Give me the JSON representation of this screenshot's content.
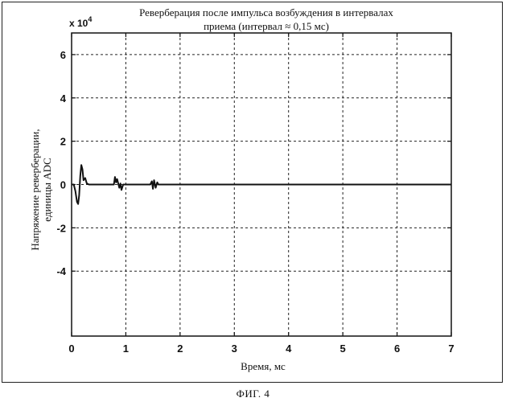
{
  "chart_data": {
    "type": "line",
    "title_lines": [
      "Реверберация после импульса возбуждения в интервалах",
      "приема (интервал ≈ 0,15 мс)"
    ],
    "xlabel": "Время, мс",
    "ylabel_lines": [
      "Напряжение реверберации,",
      "единицы ADC"
    ],
    "y_scale_label": "x 10",
    "y_scale_exponent": "4",
    "xlim": [
      0,
      7
    ],
    "ylim": [
      -7,
      7
    ],
    "x_ticks": [
      "0",
      "1",
      "2",
      "3",
      "4",
      "5",
      "6",
      "7"
    ],
    "y_ticks": [
      "6",
      "4",
      "2",
      "0",
      "-2",
      "-4"
    ],
    "y_tick_values": [
      6,
      4,
      2,
      0,
      -2,
      -4
    ],
    "grid": true,
    "series": [
      {
        "x": [
          0,
          0.04,
          0.07,
          0.1,
          0.12,
          0.14,
          0.16,
          0.18,
          0.2,
          0.22,
          0.25,
          0.28,
          0.32,
          0.5,
          0.78,
          0.8,
          0.82,
          0.84,
          0.86,
          0.88,
          0.9,
          0.92,
          0.95,
          1.0,
          1.45,
          1.48,
          1.5,
          1.52,
          1.55,
          1.58,
          1.6,
          7
        ],
        "y": [
          0,
          0,
          -0.3,
          -0.8,
          -0.9,
          -0.5,
          0.4,
          0.9,
          0.7,
          0.2,
          0.3,
          0.05,
          0,
          0,
          0,
          0.35,
          0.1,
          0.25,
          0.05,
          -0.15,
          0.05,
          -0.25,
          0,
          0,
          0,
          0.15,
          -0.2,
          0.2,
          -0.15,
          0.1,
          0,
          0
        ]
      }
    ]
  },
  "caption": "ФИГ. 4"
}
